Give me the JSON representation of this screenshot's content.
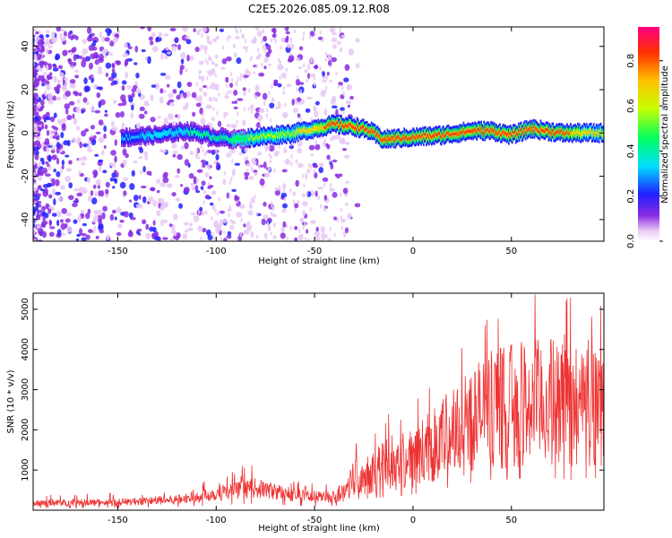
{
  "title": "C2E5.2026.085.09.12.R08",
  "chart_data": [
    {
      "type": "heatmap",
      "name": "spectrogram",
      "xlabel": "Height of straight line (km)",
      "ylabel": "Frequency (Hz)",
      "xlim": [
        -193,
        97
      ],
      "ylim": [
        -50,
        49
      ],
      "xticks": [
        -150,
        -100,
        -50,
        0,
        50
      ],
      "yticks": [
        -40,
        -20,
        0,
        20,
        40
      ],
      "colorbar": {
        "label": "Normalized spectral amplitude",
        "range": [
          0,
          0.95
        ],
        "ticks": [
          0.0,
          0.2,
          0.4,
          0.6,
          0.8
        ],
        "tick_labels": [
          "0.0",
          "0.2",
          "0.4",
          "0.6",
          "0.8"
        ]
      },
      "ridge": {
        "x": [
          -145,
          -130,
          -115,
          -100,
          -90,
          -80,
          -70,
          -60,
          -50,
          -40,
          -30,
          -22,
          -15,
          0,
          15,
          30,
          40,
          50,
          60,
          75,
          97
        ],
        "freq": [
          -2,
          -1,
          1,
          -2,
          -3,
          -2,
          -1,
          0,
          2,
          4,
          3,
          1,
          -3,
          -2,
          -1,
          1,
          1,
          -1,
          2,
          0,
          0
        ],
        "amplitude": [
          0.25,
          0.3,
          0.35,
          0.4,
          0.45,
          0.5,
          0.55,
          0.6,
          0.7,
          0.8,
          0.85,
          0.85,
          0.8,
          0.85,
          0.85,
          0.8,
          0.85,
          0.85,
          0.8,
          0.8,
          0.6
        ]
      }
    },
    {
      "type": "line",
      "name": "snr",
      "xlabel": "Height of straight line (km)",
      "ylabel": "SNR (10 * v/v)",
      "xlim": [
        -193,
        97
      ],
      "ylim": [
        0,
        5400
      ],
      "xticks": [
        -150,
        -100,
        -50,
        0,
        50
      ],
      "yticks": [
        1000,
        2000,
        3000,
        4000,
        5000
      ],
      "color": "#ee3333",
      "trend": {
        "x": [
          -193,
          -150,
          -120,
          -100,
          -80,
          -60,
          -45,
          -35,
          -30,
          -20,
          -10,
          0,
          10,
          20,
          30,
          40,
          50,
          60,
          70,
          80,
          90,
          97
        ],
        "y": [
          180,
          200,
          260,
          420,
          550,
          380,
          320,
          420,
          900,
          1000,
          1150,
          1300,
          1600,
          1950,
          2300,
          2500,
          2600,
          2650,
          2700,
          2500,
          2700,
          2600
        ]
      }
    }
  ]
}
